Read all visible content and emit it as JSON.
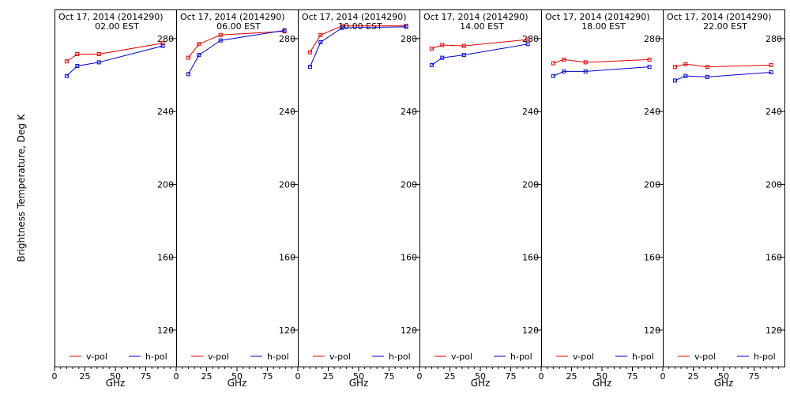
{
  "ylabel": "Brightness Temperature, Deg K",
  "xlabel": "GHz",
  "colors": {
    "v_pol": "#e00000",
    "h_pol": "#0000d0",
    "axis": "#000000"
  },
  "chart_data": [
    {
      "type": "line",
      "title": "Oct 17, 2014 (2014290)",
      "subtitle": "02.00 EST",
      "x_ticks": [
        0,
        25,
        50,
        75
      ],
      "y_ticks": [
        120,
        160,
        200,
        240,
        280
      ],
      "xlim": [
        0,
        100
      ],
      "ylim": [
        100,
        296
      ],
      "grid": false,
      "legend_position": "bottom",
      "series": [
        {
          "name": "v-pol",
          "x": [
            10.0,
            18.7,
            36.5,
            89.0
          ],
          "y": [
            267.5,
            271.5,
            271.5,
            277.5
          ]
        },
        {
          "name": "h-pol",
          "x": [
            10.0,
            18.7,
            36.5,
            89.0
          ],
          "y": [
            259.5,
            265,
            267,
            276
          ]
        }
      ]
    },
    {
      "type": "line",
      "title": "Oct 17, 2014 (2014290)",
      "subtitle": "06.00 EST",
      "x_ticks": [
        0,
        25,
        50,
        75
      ],
      "y_ticks": [
        120,
        160,
        200,
        240,
        280
      ],
      "xlim": [
        0,
        100
      ],
      "ylim": [
        100,
        296
      ],
      "grid": false,
      "legend_position": "bottom",
      "series": [
        {
          "name": "v-pol",
          "x": [
            10.0,
            18.7,
            36.5,
            89.0
          ],
          "y": [
            269.5,
            277,
            282,
            284
          ]
        },
        {
          "name": "h-pol",
          "x": [
            10.0,
            18.7,
            36.5,
            89.0
          ],
          "y": [
            260.5,
            271,
            279,
            284.5
          ]
        }
      ]
    },
    {
      "type": "line",
      "title": "Oct 17, 2014 (2014290)",
      "subtitle": "10.00 EST",
      "x_ticks": [
        0,
        25,
        50,
        75
      ],
      "y_ticks": [
        120,
        160,
        200,
        240,
        280
      ],
      "xlim": [
        0,
        100
      ],
      "ylim": [
        100,
        296
      ],
      "grid": false,
      "legend_position": "bottom",
      "series": [
        {
          "name": "v-pol",
          "x": [
            10.0,
            18.7,
            36.5,
            89.0
          ],
          "y": [
            272.5,
            282,
            287,
            287
          ]
        },
        {
          "name": "h-pol",
          "x": [
            10.0,
            18.7,
            36.5,
            89.0
          ],
          "y": [
            264.5,
            278,
            286,
            286.5
          ]
        }
      ]
    },
    {
      "type": "line",
      "title": "Oct 17, 2014 (2014290)",
      "subtitle": "14.00 EST",
      "x_ticks": [
        0,
        25,
        50,
        75
      ],
      "y_ticks": [
        120,
        160,
        200,
        240,
        280
      ],
      "xlim": [
        0,
        100
      ],
      "ylim": [
        100,
        296
      ],
      "grid": false,
      "legend_position": "bottom",
      "series": [
        {
          "name": "v-pol",
          "x": [
            10.0,
            18.7,
            36.5,
            89.0
          ],
          "y": [
            274.5,
            276.5,
            276,
            279.5
          ]
        },
        {
          "name": "h-pol",
          "x": [
            10.0,
            18.7,
            36.5,
            89.0
          ],
          "y": [
            265.5,
            269.5,
            271,
            277
          ]
        }
      ]
    },
    {
      "type": "line",
      "title": "Oct 17, 2014 (2014290)",
      "subtitle": "18.00 EST",
      "x_ticks": [
        0,
        25,
        50,
        75
      ],
      "y_ticks": [
        120,
        160,
        200,
        240,
        280
      ],
      "xlim": [
        0,
        100
      ],
      "ylim": [
        100,
        296
      ],
      "grid": false,
      "legend_position": "bottom",
      "series": [
        {
          "name": "v-pol",
          "x": [
            10.0,
            18.7,
            36.5,
            89.0
          ],
          "y": [
            266.5,
            268.5,
            267,
            268.5
          ]
        },
        {
          "name": "h-pol",
          "x": [
            10.0,
            18.7,
            36.5,
            89.0
          ],
          "y": [
            259.5,
            262,
            262,
            264.5
          ]
        }
      ]
    },
    {
      "type": "line",
      "title": "Oct 17, 2014 (2014290)",
      "subtitle": "22.00 EST",
      "x_ticks": [
        0,
        25,
        50,
        75
      ],
      "y_ticks": [
        120,
        160,
        200,
        240,
        280
      ],
      "xlim": [
        0,
        100
      ],
      "ylim": [
        100,
        296
      ],
      "grid": false,
      "legend_position": "bottom",
      "series": [
        {
          "name": "v-pol",
          "x": [
            10.0,
            18.7,
            36.5,
            89.0
          ],
          "y": [
            264.5,
            266,
            264.5,
            265.5
          ]
        },
        {
          "name": "h-pol",
          "x": [
            10.0,
            18.7,
            36.5,
            89.0
          ],
          "y": [
            257,
            259.5,
            259,
            261.5
          ]
        }
      ]
    }
  ]
}
